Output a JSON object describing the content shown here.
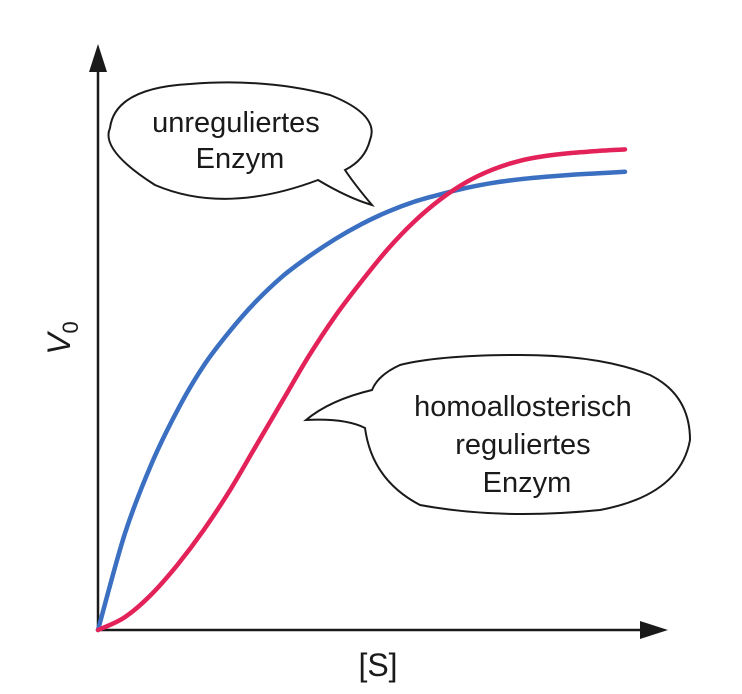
{
  "chart_data": {
    "type": "line",
    "xlabel": "[S]",
    "ylabel": "V",
    "ylabel_subscript": "0",
    "xlim": [
      0,
      1
    ],
    "ylim": [
      0,
      1
    ],
    "grid": false,
    "legend": "none",
    "series": [
      {
        "label_lines": [
          "unreguliertes",
          "Enzym"
        ],
        "color": "#3a6fc1",
        "x": [
          0,
          0.05,
          0.1,
          0.15,
          0.2,
          0.25,
          0.3,
          0.35,
          0.4,
          0.45,
          0.5,
          0.55,
          0.6,
          0.65,
          0.7,
          0.75,
          0.8,
          0.85,
          0.9,
          0.95,
          1.0
        ],
        "y": [
          0,
          0.19,
          0.33,
          0.44,
          0.53,
          0.6,
          0.66,
          0.71,
          0.75,
          0.785,
          0.815,
          0.84,
          0.86,
          0.875,
          0.888,
          0.898,
          0.905,
          0.91,
          0.914,
          0.917,
          0.92
        ]
      },
      {
        "label_lines": [
          "homoallosterisch",
          "reguliertes",
          "Enzym"
        ],
        "color": "#e3225a",
        "x": [
          0,
          0.05,
          0.1,
          0.15,
          0.2,
          0.25,
          0.3,
          0.35,
          0.4,
          0.45,
          0.5,
          0.55,
          0.6,
          0.65,
          0.7,
          0.75,
          0.8,
          0.85,
          0.9,
          0.95,
          1.0
        ],
        "y": [
          0,
          0.025,
          0.07,
          0.13,
          0.2,
          0.28,
          0.37,
          0.46,
          0.55,
          0.63,
          0.7,
          0.765,
          0.82,
          0.865,
          0.9,
          0.925,
          0.942,
          0.952,
          0.958,
          0.962,
          0.965
        ]
      }
    ]
  }
}
